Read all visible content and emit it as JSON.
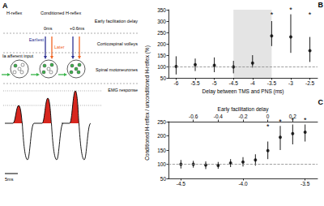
{
  "diagram": {
    "label": "A",
    "headers": [
      "H-reflex",
      "Conditioned H-reflex"
    ],
    "delay_label": "Early facilitation delay",
    "delays": [
      "0ms",
      "+0.6ms"
    ],
    "volley_labels": [
      "Earliest",
      "Later"
    ],
    "row_labels": [
      "Corticospinal volleys",
      "Spinal motoneurones",
      "EMG response"
    ],
    "input_label": "Ia afferent input",
    "scale_bar": "5ms"
  },
  "chart_data": [
    {
      "type": "scatter",
      "label": "B",
      "x": [
        -6,
        -5.5,
        -5,
        -4.5,
        -4,
        -3.5,
        -3,
        -2.5
      ],
      "values": [
        100,
        108,
        105,
        98,
        115,
        235,
        230,
        170
      ],
      "error_low": [
        65,
        80,
        75,
        70,
        95,
        190,
        160,
        120
      ],
      "error_high": [
        145,
        135,
        140,
        125,
        150,
        300,
        330,
        230
      ],
      "significant": [
        false,
        false,
        false,
        false,
        false,
        true,
        true,
        true
      ],
      "significance_label": "*",
      "xlabel": "Delay between TMS and PNS (ms)",
      "ylabel": "Conditioned H-reflex / unconditioned H-reflex (%)",
      "xlim": [
        -6.2,
        -2.3
      ],
      "xticks": [
        -6,
        -5.5,
        -5,
        -4.5,
        -4,
        -3.5,
        -3,
        -2.5
      ],
      "ylim": [
        50,
        350
      ],
      "yticks": [
        50,
        100,
        150,
        200,
        250,
        300,
        350
      ],
      "reference_line": 100,
      "shaded_range": [
        -4.5,
        -3.5
      ],
      "color": "#000000",
      "marker": "circle",
      "grid": false
    },
    {
      "type": "scatter",
      "label": "C",
      "x": [
        -4.5,
        -4.4,
        -4.3,
        -4.2,
        -4.1,
        -4,
        -3.9,
        -3.8,
        -3.7,
        -3.6,
        -3.5
      ],
      "values": [
        100,
        100,
        97,
        96,
        104,
        108,
        115,
        148,
        195,
        208,
        213
      ],
      "error_low": [
        85,
        88,
        83,
        84,
        90,
        92,
        95,
        118,
        150,
        170,
        180
      ],
      "error_high": [
        115,
        112,
        110,
        108,
        118,
        125,
        135,
        180,
        235,
        240,
        240
      ],
      "significant": [
        false,
        false,
        false,
        false,
        false,
        false,
        false,
        true,
        true,
        true,
        true
      ],
      "significance_label": "*",
      "xlim": [
        -4.6,
        -3.4
      ],
      "xticks": [
        -4.5,
        {
          "value": -4,
          "label": "-4.0"
        },
        -3.5
      ],
      "x2label": "Early facilitation delay",
      "x2lim": [
        -0.8,
        0.4
      ],
      "x2ticks": [
        -0.6,
        -0.4,
        -0.2,
        0,
        0.2
      ],
      "ylim": [
        50,
        250
      ],
      "yticks": [
        50,
        100,
        150,
        200,
        250
      ],
      "reference_line": 100,
      "color": "#000000",
      "marker": "circle",
      "grid": false
    }
  ]
}
